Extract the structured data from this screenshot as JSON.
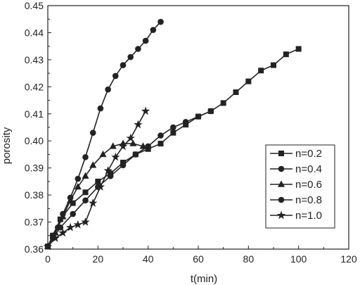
{
  "chart_data": {
    "type": "line",
    "title": "",
    "xlabel": "t(min)",
    "ylabel": "porosity",
    "xlim": [
      0,
      120
    ],
    "ylim": [
      0.36,
      0.45
    ],
    "xticks": [
      0,
      20,
      40,
      60,
      80,
      100,
      120
    ],
    "yticks": [
      0.36,
      0.37,
      0.38,
      0.39,
      0.4,
      0.41,
      0.42,
      0.43,
      0.44,
      0.45
    ],
    "ytick_labels": [
      "0.36",
      "0.37",
      "0.38",
      "0.39",
      "0.40",
      "0.41",
      "0.42",
      "0.43",
      "0.44",
      "0.45"
    ],
    "grid": false,
    "legend_position": "right",
    "series": [
      {
        "name": "n=0.2",
        "marker": "square",
        "x": [
          0,
          2,
          5,
          10,
          15,
          20,
          25,
          30,
          35,
          40,
          45,
          50,
          55,
          60,
          65,
          70,
          75,
          80,
          85,
          90,
          95,
          100
        ],
        "y": [
          0.361,
          0.365,
          0.371,
          0.377,
          0.381,
          0.385,
          0.388,
          0.392,
          0.395,
          0.397,
          0.399,
          0.403,
          0.406,
          0.409,
          0.411,
          0.414,
          0.418,
          0.422,
          0.426,
          0.428,
          0.432,
          0.434
        ]
      },
      {
        "name": "n=0.4",
        "marker": "circle",
        "x": [
          0,
          2,
          5,
          10,
          15,
          20,
          25,
          30,
          35,
          40,
          45,
          50,
          55,
          60,
          65
        ],
        "y": [
          0.361,
          0.364,
          0.368,
          0.373,
          0.378,
          0.383,
          0.387,
          0.391,
          0.395,
          0.398,
          0.402,
          0.405,
          0.407,
          0.409,
          0.411
        ]
      },
      {
        "name": "n=0.6",
        "marker": "triangle",
        "x": [
          0,
          3,
          6,
          9,
          12,
          15,
          18,
          22,
          26,
          30,
          34,
          38
        ],
        "y": [
          0.361,
          0.366,
          0.372,
          0.378,
          0.383,
          0.387,
          0.391,
          0.395,
          0.398,
          0.399,
          0.399,
          0.398
        ]
      },
      {
        "name": "n=0.8",
        "marker": "circle",
        "x": [
          0,
          2,
          4,
          6,
          9,
          12,
          15,
          18,
          21,
          24,
          27,
          30,
          33,
          36,
          39,
          42,
          45
        ],
        "y": [
          0.361,
          0.365,
          0.368,
          0.373,
          0.379,
          0.386,
          0.394,
          0.403,
          0.412,
          0.419,
          0.424,
          0.428,
          0.431,
          0.434,
          0.437,
          0.441,
          0.444
        ]
      },
      {
        "name": "n=1.0",
        "marker": "star",
        "x": [
          0,
          3,
          6,
          9,
          12,
          15,
          18,
          21,
          24,
          27,
          30,
          33,
          36,
          39
        ],
        "y": [
          0.361,
          0.364,
          0.366,
          0.368,
          0.369,
          0.37,
          0.377,
          0.383,
          0.389,
          0.394,
          0.398,
          0.401,
          0.406,
          0.411
        ]
      }
    ]
  }
}
